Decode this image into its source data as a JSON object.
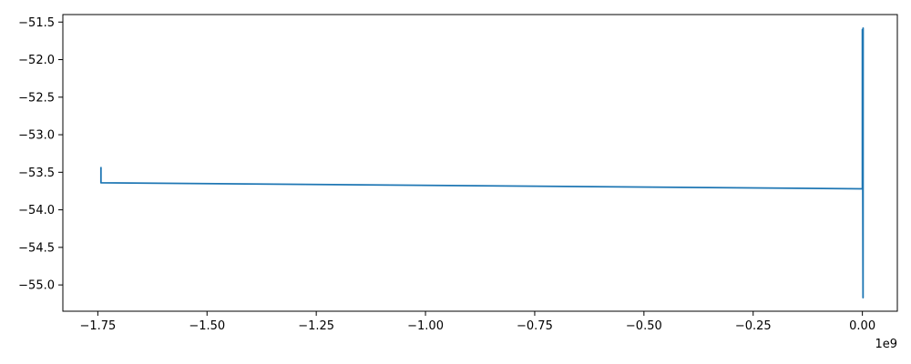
{
  "chart_data": {
    "type": "line",
    "title": "",
    "xlabel": "",
    "ylabel": "",
    "x_offset_text": "1e9",
    "xlim": [
      -1.83,
      0.08
    ],
    "ylim": [
      -55.35,
      -51.4
    ],
    "xticks": [
      -1.75,
      -1.5,
      -1.25,
      -1.0,
      -0.75,
      -0.5,
      -0.25,
      0.0
    ],
    "xtick_labels": [
      "−1.75",
      "−1.50",
      "−1.25",
      "−1.00",
      "−0.75",
      "−0.50",
      "−0.25",
      "0.00"
    ],
    "yticks": [
      -51.5,
      -52.0,
      -52.5,
      -53.0,
      -53.5,
      -54.0,
      -54.5,
      -55.0
    ],
    "ytick_labels": [
      "−51.5",
      "−52.0",
      "−52.5",
      "−53.0",
      "−53.5",
      "−54.0",
      "−54.5",
      "−55.0"
    ],
    "grid": false,
    "colors": {
      "line": "#1f77b4",
      "axes": "#000000",
      "background": "#ffffff"
    },
    "series": [
      {
        "x": [
          -1.7428,
          -1.7428,
          0.0,
          0.0,
          0.0015,
          0.0017,
          0.0017,
          0.0015,
          0.0013
        ],
        "y": [
          -53.43,
          -53.64,
          -53.72,
          -51.6,
          -55.17,
          -51.58,
          -51.78,
          -55.12,
          -51.62
        ]
      }
    ]
  }
}
